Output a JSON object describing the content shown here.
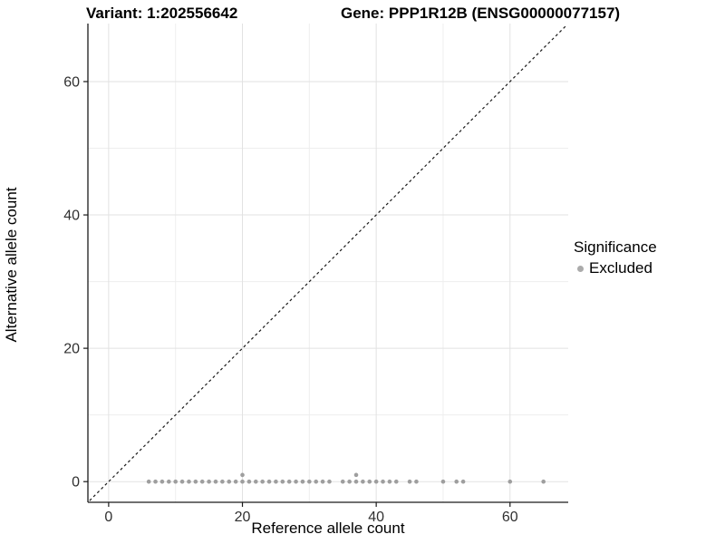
{
  "header": {
    "variant_title": "Variant: 1:202556642",
    "gene_title": "Gene: PPP1R12B (ENSG00000077157)"
  },
  "legend": {
    "title": "Significance",
    "items": [
      {
        "label": "Excluded",
        "color": "#ababab"
      }
    ]
  },
  "chart_data": {
    "type": "scatter",
    "title": "",
    "xlabel": "Reference allele count",
    "ylabel": "Alternative allele count",
    "xlim": [
      -3.1,
      68.7
    ],
    "ylim": [
      -3.1,
      68.7
    ],
    "x_ticks": [
      0,
      20,
      40,
      60
    ],
    "y_ticks": [
      0,
      20,
      40,
      60
    ],
    "x_minor_ticks": [
      10,
      30,
      50
    ],
    "y_minor_ticks": [
      10,
      30,
      50
    ],
    "grid": true,
    "legend_position": "right",
    "identity_line": {
      "style": "dashed",
      "from": [
        -2.85,
        -2.85
      ],
      "to": [
        68.55,
        68.55
      ],
      "color": "#1a1a1a"
    },
    "series": [
      {
        "name": "Excluded",
        "color": "#9e9e9e",
        "points": [
          [
            6,
            0
          ],
          [
            7,
            0
          ],
          [
            8,
            0
          ],
          [
            9,
            0
          ],
          [
            10,
            0
          ],
          [
            11,
            0
          ],
          [
            12,
            0
          ],
          [
            13,
            0
          ],
          [
            14,
            0
          ],
          [
            15,
            0
          ],
          [
            16,
            0
          ],
          [
            17,
            0
          ],
          [
            18,
            0
          ],
          [
            19,
            0
          ],
          [
            20,
            0
          ],
          [
            21,
            0
          ],
          [
            22,
            0
          ],
          [
            23,
            0
          ],
          [
            24,
            0
          ],
          [
            25,
            0
          ],
          [
            26,
            0
          ],
          [
            27,
            0
          ],
          [
            28,
            0
          ],
          [
            29,
            0
          ],
          [
            30,
            0
          ],
          [
            31,
            0
          ],
          [
            32,
            0
          ],
          [
            33,
            0
          ],
          [
            35,
            0
          ],
          [
            36,
            0
          ],
          [
            37,
            0
          ],
          [
            38,
            0
          ],
          [
            39,
            0
          ],
          [
            40,
            0
          ],
          [
            41,
            0
          ],
          [
            42,
            0
          ],
          [
            43,
            0
          ],
          [
            45,
            0
          ],
          [
            46,
            0
          ],
          [
            50,
            0
          ],
          [
            52,
            0
          ],
          [
            53,
            0
          ],
          [
            60,
            0
          ],
          [
            65,
            0
          ],
          [
            20,
            1
          ],
          [
            37,
            1
          ]
        ]
      }
    ],
    "colors": {
      "grid_major": "#e2e2e2",
      "grid_minor": "#eeeeee",
      "axis_line": "#1a1a1a",
      "tick_label": "#303030",
      "point": "#9e9e9e"
    }
  }
}
